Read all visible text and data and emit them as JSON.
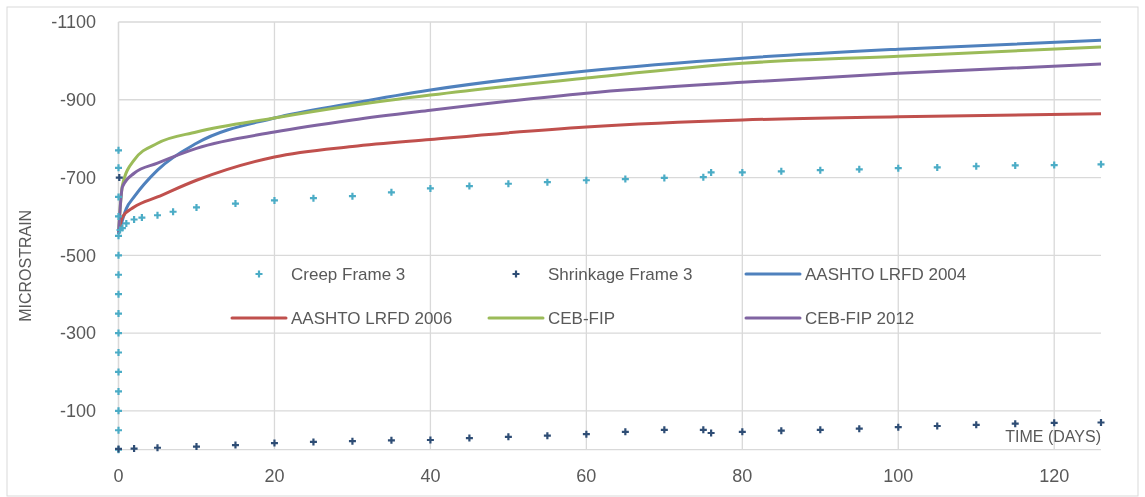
{
  "chart_data": {
    "type": "scatter",
    "xlabel": "TIME (DAYS)",
    "ylabel": "MICROSTRAIN",
    "xlim": [
      0,
      126
    ],
    "ylim": [
      0,
      -1100
    ],
    "xticks": [
      0,
      20,
      40,
      60,
      80,
      100,
      120
    ],
    "yticks": [
      -1100,
      -900,
      -700,
      -500,
      -300,
      -100
    ],
    "grid": true,
    "legend": "center",
    "series": [
      {
        "name": "Creep Frame 3",
        "marker": "cross",
        "color": "#4bacc6",
        "x": [
          0,
          0,
          0,
          0,
          0,
          0,
          0,
          0,
          0,
          0,
          0,
          0,
          0,
          0,
          0,
          0,
          0.2,
          0.5,
          1,
          2,
          3,
          5,
          7,
          10,
          15,
          20,
          25,
          30,
          35,
          40,
          45,
          50,
          55,
          60,
          65,
          70,
          75,
          76,
          80,
          85,
          90,
          95,
          100,
          105,
          110,
          115,
          120,
          126
        ],
        "values": [
          0,
          -50,
          -100,
          -150,
          -200,
          -250,
          -300,
          -350,
          -400,
          -450,
          -500,
          -550,
          -600,
          -650,
          -725,
          -770,
          -565,
          -570,
          -582,
          -592,
          -597,
          -603,
          -612,
          -623,
          -633,
          -641,
          -647,
          -652,
          -662,
          -672,
          -678,
          -684,
          -688,
          -693,
          -696,
          -699,
          -701,
          -713,
          -713,
          -716,
          -719,
          -721,
          -724,
          -726,
          -729,
          -731,
          -732,
          -734
        ]
      },
      {
        "name": "Shrinkage Frame 3",
        "marker": "cross",
        "color": "#2e4d75",
        "x": [
          0,
          0.1,
          2,
          5,
          10,
          15,
          20,
          25,
          30,
          35,
          40,
          45,
          50,
          55,
          60,
          65,
          70,
          75,
          76,
          80,
          85,
          90,
          95,
          100,
          105,
          110,
          115,
          120,
          126
        ],
        "values": [
          -2,
          -700,
          -3,
          -5,
          -8,
          -12,
          -17,
          -20,
          -22,
          -24,
          -25,
          -30,
          -33,
          -36,
          -40,
          -46,
          -51,
          -51,
          -43,
          -46,
          -49,
          -51,
          -54,
          -58,
          -61,
          -64,
          -67,
          -69,
          -70
        ]
      },
      {
        "name": "AASHTO LRFD 2004",
        "type": "line",
        "marker": "none",
        "color": "#4f81bd",
        "x": [
          0,
          1,
          2,
          5,
          10,
          20,
          30,
          40,
          60,
          80,
          100,
          126
        ],
        "values": [
          -555,
          -620,
          -650,
          -719,
          -788,
          -853,
          -891,
          -925,
          -974,
          -1007,
          -1030,
          -1053
        ]
      },
      {
        "name": "AASHTO LRFD 2006",
        "type": "line",
        "marker": "none",
        "color": "#c0504d",
        "x": [
          0,
          0.5,
          2,
          5,
          10,
          20,
          30,
          40,
          60,
          80,
          100,
          126
        ],
        "values": [
          -555,
          -598,
          -624,
          -650,
          -693,
          -753,
          -780,
          -798,
          -830,
          -848,
          -856,
          -864
        ]
      },
      {
        "name": "CEB-FIP",
        "type": "line",
        "marker": "none",
        "color": "#9bbb59",
        "x": [
          0,
          0.5,
          2,
          5,
          10,
          20,
          30,
          40,
          60,
          80,
          100,
          126
        ],
        "values": [
          -555,
          -680,
          -745,
          -788,
          -817,
          -853,
          -885,
          -912,
          -956,
          -994,
          -1012,
          -1036
        ]
      },
      {
        "name": "CEB-FIP 2012",
        "type": "line",
        "marker": "none",
        "color": "#8064a2",
        "x": [
          0,
          0.5,
          2,
          5,
          10,
          20,
          30,
          40,
          60,
          80,
          100,
          126
        ],
        "values": [
          -555,
          -676,
          -711,
          -737,
          -775,
          -817,
          -848,
          -873,
          -917,
          -945,
          -968,
          -992
        ]
      }
    ]
  }
}
